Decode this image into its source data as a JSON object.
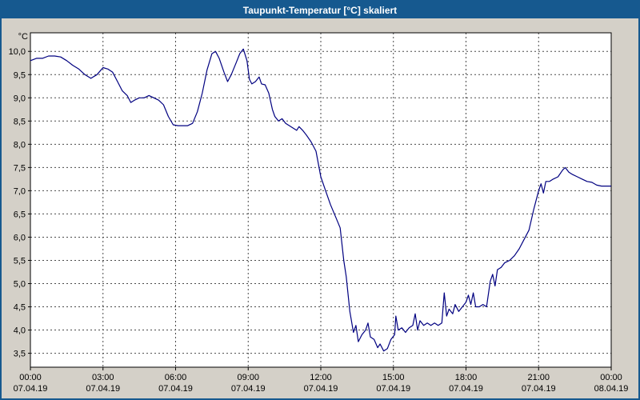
{
  "window": {
    "title": "Taupunkt-Temperatur [°C] skaliert"
  },
  "colors": {
    "title_bar": "#16598F",
    "title_text": "#FFFFFF",
    "chart_bg": "#D4D0C8",
    "plot_bg": "#FFFFFF",
    "plot_border": "#000000",
    "grid": "#4A4A4A",
    "axis_text": "#000000",
    "line": "#000080",
    "window_border": "#16598F"
  },
  "chart_data": {
    "type": "line",
    "title": "Taupunkt-Temperatur [°C] skaliert",
    "ylabel_unit": "°C",
    "xlabel": "",
    "grid": true,
    "legend": "none",
    "ylim": [
      3.2,
      10.4
    ],
    "xlim_hours": [
      0,
      24
    ],
    "y_ticks": [
      10.0,
      9.5,
      9.0,
      8.5,
      8.0,
      7.5,
      7.0,
      6.5,
      6.0,
      5.5,
      5.0,
      4.5,
      4.0,
      3.5
    ],
    "y_tick_labels": [
      "10,0",
      "9,5",
      "9,0",
      "8,5",
      "8,0",
      "7,5",
      "7,0",
      "6,5",
      "6,0",
      "5,5",
      "5,0",
      "4,5",
      "4,0",
      "3,5"
    ],
    "x_ticks_hours": [
      0,
      3,
      6,
      9,
      12,
      15,
      18,
      21,
      24
    ],
    "x_tick_times": [
      "00:00",
      "03:00",
      "06:00",
      "09:00",
      "12:00",
      "15:00",
      "18:00",
      "21:00",
      "00:00"
    ],
    "x_tick_dates": [
      "07.04.19",
      "07.04.19",
      "07.04.19",
      "07.04.19",
      "07.04.19",
      "07.04.19",
      "07.04.19",
      "07.04.19",
      "08.04.19"
    ],
    "series": [
      {
        "name": "Taupunkt-Temperatur",
        "points": [
          [
            0,
            9.8
          ],
          [
            0.25,
            9.85
          ],
          [
            0.5,
            9.85
          ],
          [
            0.75,
            9.9
          ],
          [
            1,
            9.9
          ],
          [
            1.25,
            9.88
          ],
          [
            1.5,
            9.8
          ],
          [
            1.75,
            9.7
          ],
          [
            2,
            9.62
          ],
          [
            2.25,
            9.5
          ],
          [
            2.5,
            9.42
          ],
          [
            2.75,
            9.5
          ],
          [
            3,
            9.65
          ],
          [
            3.2,
            9.62
          ],
          [
            3.4,
            9.55
          ],
          [
            3.6,
            9.35
          ],
          [
            3.8,
            9.15
          ],
          [
            4,
            9.05
          ],
          [
            4.15,
            8.9
          ],
          [
            4.3,
            8.95
          ],
          [
            4.5,
            9.0
          ],
          [
            4.7,
            9.0
          ],
          [
            4.9,
            9.05
          ],
          [
            5.1,
            9.0
          ],
          [
            5.3,
            8.95
          ],
          [
            5.5,
            8.85
          ],
          [
            5.7,
            8.6
          ],
          [
            5.9,
            8.42
          ],
          [
            6.1,
            8.4
          ],
          [
            6.3,
            8.4
          ],
          [
            6.5,
            8.4
          ],
          [
            6.7,
            8.45
          ],
          [
            6.9,
            8.7
          ],
          [
            7.1,
            9.1
          ],
          [
            7.3,
            9.6
          ],
          [
            7.5,
            9.95
          ],
          [
            7.65,
            10.0
          ],
          [
            7.8,
            9.85
          ],
          [
            8,
            9.55
          ],
          [
            8.15,
            9.35
          ],
          [
            8.3,
            9.5
          ],
          [
            8.5,
            9.75
          ],
          [
            8.65,
            9.95
          ],
          [
            8.8,
            10.05
          ],
          [
            8.95,
            9.8
          ],
          [
            9.05,
            9.4
          ],
          [
            9.15,
            9.3
          ],
          [
            9.3,
            9.35
          ],
          [
            9.45,
            9.45
          ],
          [
            9.55,
            9.3
          ],
          [
            9.7,
            9.28
          ],
          [
            9.85,
            9.1
          ],
          [
            10,
            8.75
          ],
          [
            10.1,
            8.6
          ],
          [
            10.25,
            8.5
          ],
          [
            10.4,
            8.55
          ],
          [
            10.55,
            8.45
          ],
          [
            10.7,
            8.4
          ],
          [
            10.85,
            8.35
          ],
          [
            11,
            8.3
          ],
          [
            11.1,
            8.38
          ],
          [
            11.25,
            8.3
          ],
          [
            11.4,
            8.2
          ],
          [
            11.6,
            8.05
          ],
          [
            11.8,
            7.85
          ],
          [
            12,
            7.3
          ],
          [
            12.2,
            7.0
          ],
          [
            12.4,
            6.7
          ],
          [
            12.6,
            6.45
          ],
          [
            12.8,
            6.2
          ],
          [
            12.95,
            5.5
          ],
          [
            13.05,
            5.15
          ],
          [
            13.2,
            4.4
          ],
          [
            13.35,
            3.95
          ],
          [
            13.45,
            4.1
          ],
          [
            13.55,
            3.75
          ],
          [
            13.7,
            3.9
          ],
          [
            13.85,
            4.0
          ],
          [
            13.95,
            4.15
          ],
          [
            14.05,
            3.85
          ],
          [
            14.2,
            3.8
          ],
          [
            14.35,
            3.62
          ],
          [
            14.45,
            3.7
          ],
          [
            14.6,
            3.55
          ],
          [
            14.75,
            3.6
          ],
          [
            14.9,
            3.8
          ],
          [
            15.05,
            3.9
          ],
          [
            15.1,
            4.3
          ],
          [
            15.2,
            4.0
          ],
          [
            15.35,
            4.05
          ],
          [
            15.5,
            3.95
          ],
          [
            15.65,
            4.05
          ],
          [
            15.8,
            4.1
          ],
          [
            15.9,
            4.35
          ],
          [
            16,
            4.0
          ],
          [
            16.1,
            4.2
          ],
          [
            16.25,
            4.1
          ],
          [
            16.4,
            4.15
          ],
          [
            16.55,
            4.1
          ],
          [
            16.7,
            4.15
          ],
          [
            16.85,
            4.1
          ],
          [
            17,
            4.15
          ],
          [
            17.1,
            4.8
          ],
          [
            17.2,
            4.3
          ],
          [
            17.3,
            4.45
          ],
          [
            17.45,
            4.35
          ],
          [
            17.55,
            4.55
          ],
          [
            17.7,
            4.4
          ],
          [
            17.85,
            4.5
          ],
          [
            18,
            4.6
          ],
          [
            18.1,
            4.75
          ],
          [
            18.2,
            4.55
          ],
          [
            18.3,
            4.8
          ],
          [
            18.4,
            4.5
          ],
          [
            18.55,
            4.5
          ],
          [
            18.7,
            4.55
          ],
          [
            18.85,
            4.5
          ],
          [
            19,
            5.05
          ],
          [
            19.1,
            5.2
          ],
          [
            19.2,
            4.95
          ],
          [
            19.3,
            5.3
          ],
          [
            19.45,
            5.35
          ],
          [
            19.6,
            5.45
          ],
          [
            19.8,
            5.5
          ],
          [
            20,
            5.6
          ],
          [
            20.2,
            5.75
          ],
          [
            20.4,
            5.95
          ],
          [
            20.6,
            6.15
          ],
          [
            20.8,
            6.6
          ],
          [
            21,
            7.0
          ],
          [
            21.1,
            7.15
          ],
          [
            21.2,
            6.95
          ],
          [
            21.3,
            7.2
          ],
          [
            21.45,
            7.2
          ],
          [
            21.6,
            7.25
          ],
          [
            21.8,
            7.3
          ],
          [
            22,
            7.45
          ],
          [
            22.1,
            7.5
          ],
          [
            22.25,
            7.4
          ],
          [
            22.4,
            7.35
          ],
          [
            22.6,
            7.3
          ],
          [
            22.8,
            7.25
          ],
          [
            23,
            7.2
          ],
          [
            23.2,
            7.18
          ],
          [
            23.4,
            7.12
          ],
          [
            23.6,
            7.1
          ],
          [
            23.8,
            7.1
          ],
          [
            24,
            7.1
          ]
        ]
      }
    ]
  }
}
